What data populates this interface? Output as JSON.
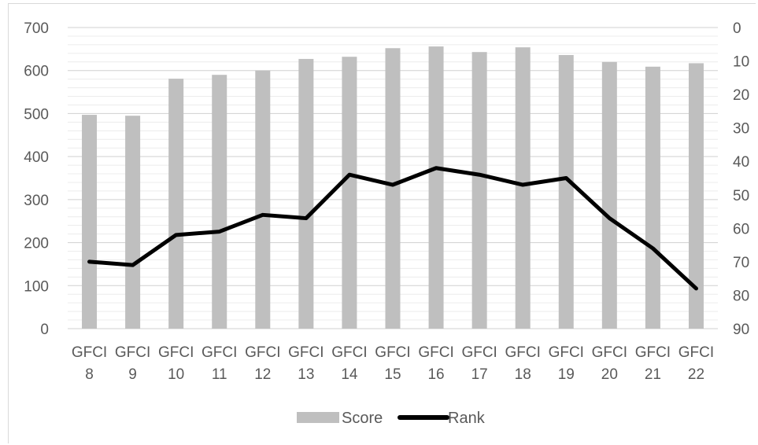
{
  "chart_data": {
    "type": "bar",
    "categories": [
      "GFCI 8",
      "GFCI 9",
      "GFCI 10",
      "GFCI 11",
      "GFCI 12",
      "GFCI 13",
      "GFCI 14",
      "GFCI 15",
      "GFCI 16",
      "GFCI 17",
      "GFCI 18",
      "GFCI 19",
      "GFCI 20",
      "GFCI 21",
      "GFCI 22"
    ],
    "category_lines": [
      [
        "GFCI",
        "8"
      ],
      [
        "GFCI",
        "9"
      ],
      [
        "GFCI",
        "10"
      ],
      [
        "GFCI",
        "11"
      ],
      [
        "GFCI",
        "12"
      ],
      [
        "GFCI",
        "13"
      ],
      [
        "GFCI",
        "14"
      ],
      [
        "GFCI",
        "15"
      ],
      [
        "GFCI",
        "16"
      ],
      [
        "GFCI",
        "17"
      ],
      [
        "GFCI",
        "18"
      ],
      [
        "GFCI",
        "19"
      ],
      [
        "GFCI",
        "20"
      ],
      [
        "GFCI",
        "21"
      ],
      [
        "GFCI",
        "22"
      ]
    ],
    "series": [
      {
        "name": "Score",
        "type": "bar",
        "axis": "left",
        "color": "#bfbfbf",
        "values": [
          497,
          495,
          581,
          590,
          600,
          627,
          632,
          652,
          656,
          643,
          654,
          636,
          620,
          609,
          617
        ]
      },
      {
        "name": "Rank",
        "type": "line",
        "axis": "right",
        "color": "#000000",
        "values": [
          70,
          71,
          62,
          61,
          56,
          57,
          44,
          47,
          42,
          44,
          47,
          45,
          57,
          66,
          78
        ]
      }
    ],
    "y_left": {
      "min": 0,
      "max": 700,
      "step": 100,
      "ticks": [
        "0",
        "100",
        "200",
        "300",
        "400",
        "500",
        "600",
        "700"
      ]
    },
    "y_right": {
      "min": 0,
      "max": 90,
      "step": 10,
      "reversed": true,
      "ticks": [
        "0",
        "10",
        "20",
        "30",
        "40",
        "50",
        "60",
        "70",
        "80",
        "90"
      ]
    },
    "grid": true,
    "legend_position": "bottom",
    "title": "",
    "xlabel": "",
    "ylabel": ""
  }
}
